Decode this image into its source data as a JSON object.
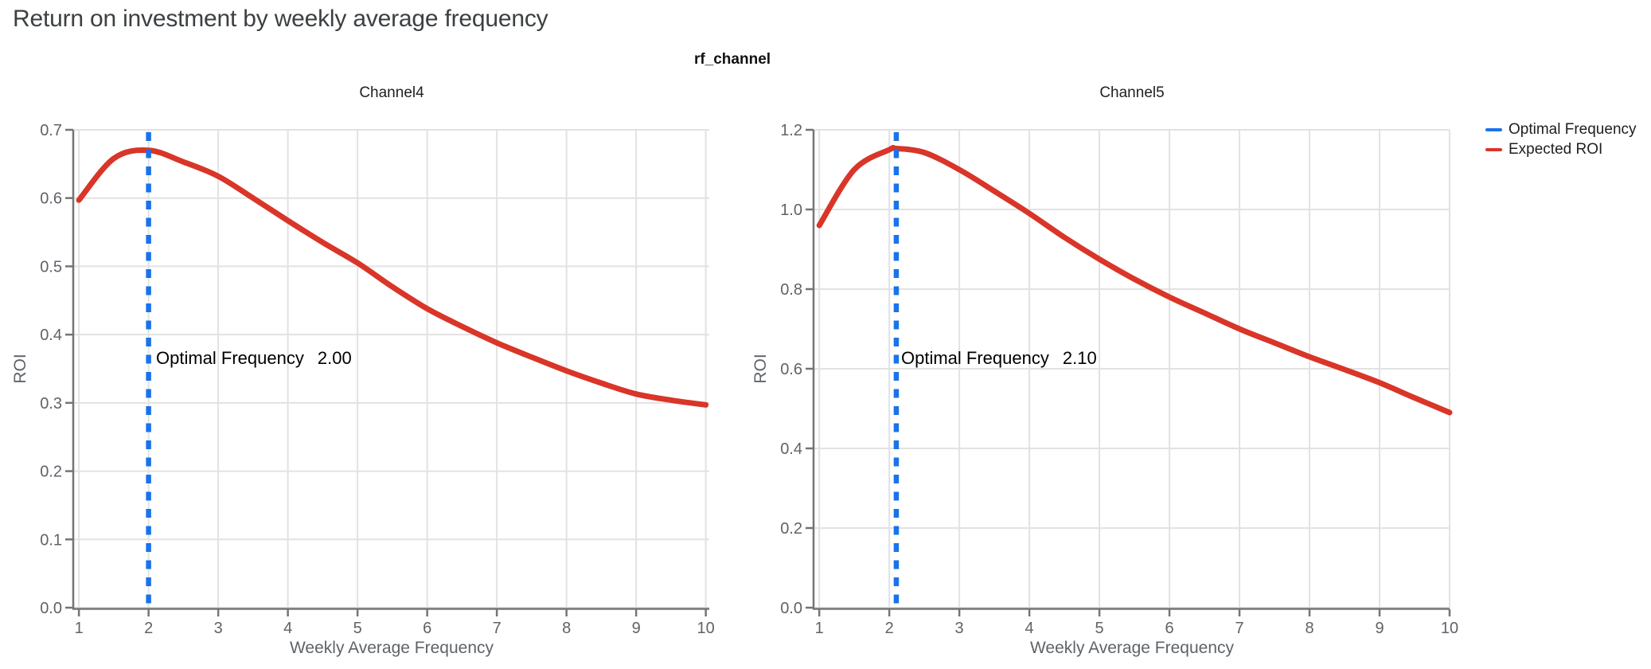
{
  "page_title": "Return on investment by weekly average frequency",
  "suptitle": "rf_channel",
  "legend": {
    "items": [
      {
        "label": "Optimal Frequency",
        "color": "#1a73e8"
      },
      {
        "label": "Expected ROI",
        "color": "#d93528"
      }
    ]
  },
  "colors": {
    "curve_red": "#d93528",
    "optimal_blue": "#1a73e8",
    "grid": "#e2e2e2",
    "spine": "#757575",
    "tick_text": "#5f6368",
    "title_text": "#3c4043"
  },
  "chart_data": [
    {
      "type": "line",
      "title": "Channel4",
      "xlabel": "Weekly Average Frequency",
      "ylabel": "ROI",
      "xlim": [
        0.93,
        10.05
      ],
      "ylim": [
        0,
        0.7
      ],
      "xticks": [
        1,
        2,
        3,
        4,
        5,
        6,
        7,
        8,
        9,
        10
      ],
      "yticks": [
        0.0,
        0.1,
        0.2,
        0.3,
        0.4,
        0.5,
        0.6,
        0.7
      ],
      "ytick_labels": [
        "0.0",
        "0.1",
        "0.2",
        "0.3",
        "0.4",
        "0.5",
        "0.6",
        "0.7"
      ],
      "grid": true,
      "legend_position": "outside-top-right",
      "optimal_frequency": 2.0,
      "annotation": {
        "label": "Optimal Frequency",
        "value": "2.00"
      },
      "vline": {
        "name": "Optimal Frequency",
        "x": 2.0,
        "color": "#1a73e8",
        "style": "dashed"
      },
      "series": [
        {
          "name": "Expected ROI",
          "color": "#d93528",
          "x": [
            1,
            1.5,
            2,
            2.5,
            3,
            3.5,
            4,
            4.5,
            5,
            5.5,
            6,
            6.5,
            7,
            7.5,
            8,
            8.5,
            9,
            9.5,
            10
          ],
          "y": [
            0.597,
            0.658,
            0.67,
            0.653,
            0.632,
            0.6,
            0.567,
            0.535,
            0.505,
            0.47,
            0.438,
            0.412,
            0.388,
            0.367,
            0.347,
            0.329,
            0.313,
            0.304,
            0.297
          ]
        }
      ]
    },
    {
      "type": "line",
      "title": "Channel5",
      "xlabel": "Weekly Average Frequency",
      "ylabel": "ROI",
      "xlim": [
        0.93,
        10.0
      ],
      "ylim": [
        0,
        1.2
      ],
      "xticks": [
        1,
        2,
        3,
        4,
        5,
        6,
        7,
        8,
        9,
        10
      ],
      "yticks": [
        0.0,
        0.2,
        0.4,
        0.6,
        0.8,
        1.0,
        1.2
      ],
      "ytick_labels": [
        "0.0",
        "0.2",
        "0.4",
        "0.6",
        "0.8",
        "1.0",
        "1.2"
      ],
      "grid": true,
      "legend_position": "outside-top-right",
      "optimal_frequency": 2.1,
      "annotation": {
        "label": "Optimal Frequency",
        "value": "2.10"
      },
      "vline": {
        "name": "Optimal Frequency",
        "x": 2.1,
        "color": "#1a73e8",
        "style": "dashed"
      },
      "series": [
        {
          "name": "Expected ROI",
          "color": "#d93528",
          "x": [
            1,
            1.5,
            2,
            2.1,
            2.5,
            3,
            3.5,
            4,
            4.5,
            5,
            5.5,
            6,
            6.5,
            7,
            7.5,
            8,
            8.5,
            9,
            9.5,
            10
          ],
          "y": [
            0.96,
            1.1,
            1.15,
            1.153,
            1.143,
            1.1,
            1.046,
            0.99,
            0.93,
            0.875,
            0.825,
            0.78,
            0.74,
            0.7,
            0.665,
            0.63,
            0.598,
            0.565,
            0.527,
            0.49
          ]
        }
      ]
    }
  ]
}
